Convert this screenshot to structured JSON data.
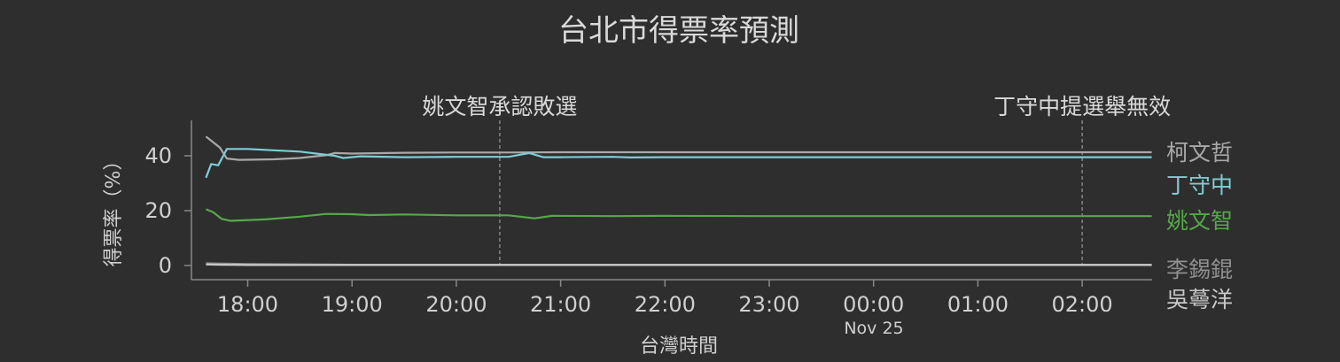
{
  "chart_data": {
    "type": "line",
    "title": "台北市得票率預測",
    "xlabel": "台灣時間",
    "ylabel": "得票率（%）",
    "date_label": "Nov 25",
    "x_range": [
      "17:36",
      "02:40"
    ],
    "x_ticks": [
      "18:00",
      "19:00",
      "20:00",
      "21:00",
      "22:00",
      "23:00",
      "00:00",
      "01:00",
      "02:00"
    ],
    "y_ticks": [
      0,
      20,
      40
    ],
    "ylim": [
      -5,
      52
    ],
    "grid": false,
    "events": [
      {
        "time": "20:25",
        "label": "姚文智承認敗選"
      }
    ],
    "events_2": [
      {
        "time": "02:00",
        "label": "丁守中提選舉無效"
      }
    ],
    "series": [
      {
        "name": "柯文哲",
        "color": "#a9a9a9",
        "points": [
          [
            "17:36",
            47
          ],
          [
            "17:44",
            43
          ],
          [
            "17:48",
            39
          ],
          [
            "17:55",
            38.5
          ],
          [
            "18:15",
            38.7
          ],
          [
            "18:30",
            39.2
          ],
          [
            "18:45",
            40.2
          ],
          [
            "18:50",
            41
          ],
          [
            "19:00",
            40.8
          ],
          [
            "19:30",
            41.1
          ],
          [
            "20:00",
            41.2
          ],
          [
            "20:30",
            41.2
          ],
          [
            "21:00",
            41.3
          ],
          [
            "22:00",
            41.3
          ],
          [
            "23:00",
            41.3
          ],
          [
            "00:00",
            41.3
          ],
          [
            "01:00",
            41.3
          ],
          [
            "02:00",
            41.3
          ],
          [
            "02:40",
            41.3
          ]
        ]
      },
      {
        "name": "丁守中",
        "color": "#7fcdd6",
        "points": [
          [
            "17:36",
            32
          ],
          [
            "17:39",
            37
          ],
          [
            "17:43",
            36.5
          ],
          [
            "17:48",
            42.5
          ],
          [
            "18:00",
            42.5
          ],
          [
            "18:30",
            41.5
          ],
          [
            "18:50",
            40
          ],
          [
            "18:55",
            39.2
          ],
          [
            "19:05",
            39.8
          ],
          [
            "19:30",
            39.5
          ],
          [
            "20:00",
            39.6
          ],
          [
            "20:30",
            39.6
          ],
          [
            "20:42",
            41
          ],
          [
            "20:50",
            39.5
          ],
          [
            "21:00",
            39.5
          ],
          [
            "21:30",
            39.6
          ],
          [
            "21:40",
            39.4
          ],
          [
            "22:00",
            39.5
          ],
          [
            "23:00",
            39.5
          ],
          [
            "00:00",
            39.5
          ],
          [
            "01:00",
            39.5
          ],
          [
            "02:00",
            39.5
          ],
          [
            "02:40",
            39.5
          ]
        ]
      },
      {
        "name": "姚文智",
        "color": "#56a84a",
        "points": [
          [
            "17:36",
            20.5
          ],
          [
            "17:40",
            19.5
          ],
          [
            "17:45",
            17
          ],
          [
            "17:50",
            16.3
          ],
          [
            "18:10",
            16.8
          ],
          [
            "18:30",
            17.8
          ],
          [
            "18:45",
            18.8
          ],
          [
            "19:00",
            18.7
          ],
          [
            "19:10",
            18.4
          ],
          [
            "19:30",
            18.6
          ],
          [
            "20:00",
            18.3
          ],
          [
            "20:30",
            18.3
          ],
          [
            "20:45",
            17.2
          ],
          [
            "20:55",
            18.1
          ],
          [
            "21:30",
            18
          ],
          [
            "22:00",
            18.1
          ],
          [
            "23:00",
            18
          ],
          [
            "00:00",
            18
          ],
          [
            "01:00",
            18
          ],
          [
            "02:00",
            18
          ],
          [
            "02:40",
            18
          ]
        ]
      },
      {
        "name": "李錫錕",
        "color": "#8f8f8f",
        "points": [
          [
            "17:36",
            0.8
          ],
          [
            "17:45",
            0.7
          ],
          [
            "18:00",
            0.5
          ],
          [
            "19:00",
            0.3
          ],
          [
            "20:00",
            0.3
          ],
          [
            "21:00",
            0.3
          ],
          [
            "22:00",
            0.3
          ],
          [
            "23:00",
            0.3
          ],
          [
            "00:00",
            0.3
          ],
          [
            "01:00",
            0.3
          ],
          [
            "02:00",
            0.3
          ],
          [
            "02:40",
            0.3
          ]
        ]
      },
      {
        "name": "吳蕚洋",
        "color": "#c8c8c8",
        "points": [
          [
            "17:36",
            0.4
          ],
          [
            "17:45",
            0.3
          ],
          [
            "18:00",
            0.2
          ],
          [
            "19:00",
            0.2
          ],
          [
            "20:00",
            0.2
          ],
          [
            "21:00",
            0.2
          ],
          [
            "22:00",
            0.2
          ],
          [
            "23:00",
            0.2
          ],
          [
            "00:00",
            0.2
          ],
          [
            "01:00",
            0.2
          ],
          [
            "02:00",
            0.2
          ],
          [
            "02:40",
            0.2
          ]
        ]
      }
    ]
  }
}
